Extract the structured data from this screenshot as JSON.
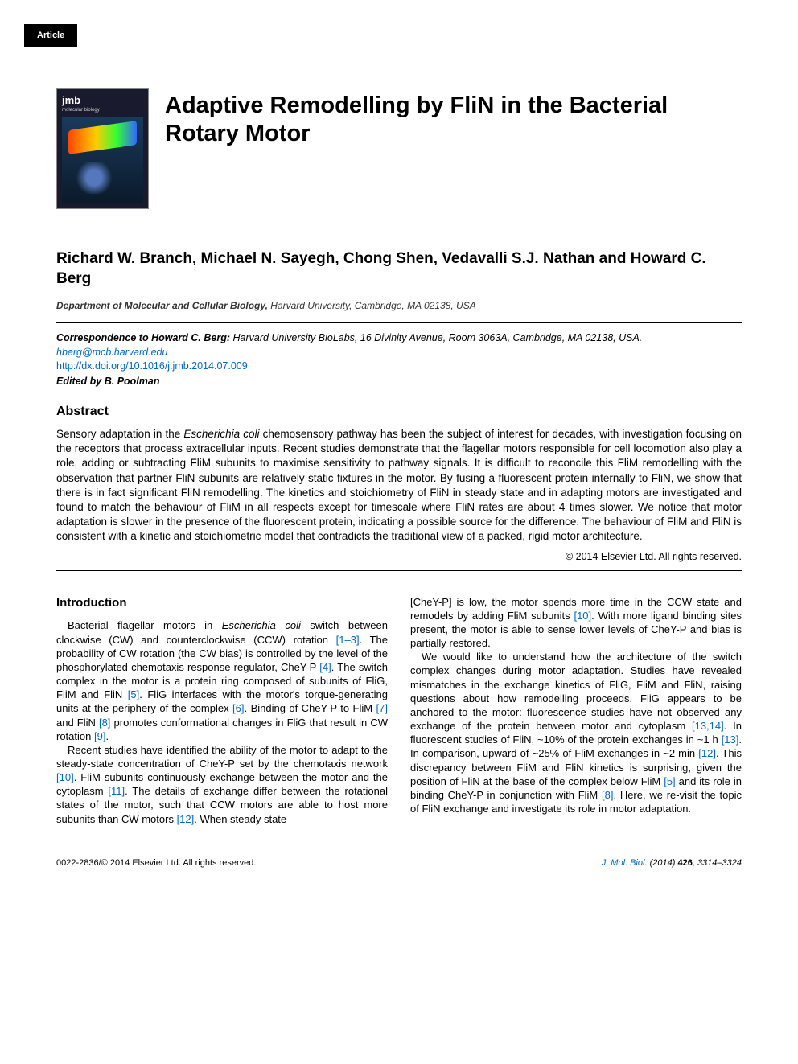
{
  "tab_label": "Article",
  "journal_cover": {
    "brand": "jmb",
    "subtitle": "molecular biology"
  },
  "title": "Adaptive Remodelling by FliN in the Bacterial Rotary Motor",
  "authors": "Richard W. Branch, Michael N. Sayegh, Chong Shen, Vedavalli S.J. Nathan and Howard C. Berg",
  "affiliation": {
    "department": "Department of Molecular and Cellular Biology,",
    "institution": " Harvard University, Cambridge, MA 02138, USA"
  },
  "correspondence": {
    "label": "Correspondence to Howard C. Berg:",
    "text": " Harvard University BioLabs, 16 Divinity Avenue, Room 3063A, Cambridge, MA 02138, USA. ",
    "email": "hberg@mcb.harvard.edu"
  },
  "doi": "http://dx.doi.org/10.1016/j.jmb.2014.07.009",
  "edited_by": "Edited by B. Poolman",
  "abstract": {
    "heading": "Abstract",
    "text_pre": "Sensory adaptation in the ",
    "text_ital": "Escherichia coli",
    "text_post": " chemosensory pathway has been the subject of interest for decades, with investigation focusing on the receptors that process extracellular inputs. Recent studies demonstrate that the flagellar motors responsible for cell locomotion also play a role, adding or subtracting FliM subunits to maximise sensitivity to pathway signals. It is difficult to reconcile this FliM remodelling with the observation that partner FliN subunits are relatively static fixtures in the motor. By fusing a fluorescent protein internally to FliN, we show that there is in fact significant FliN remodelling. The kinetics and stoichiometry of FliN in steady state and in adapting motors are investigated and found to match the behaviour of FliM in all respects except for timescale where FliN rates are about 4 times slower. We notice that motor adaptation is slower in the presence of the fluorescent protein, indicating a possible source for the difference. The behaviour of FliM and FliN is consistent with a kinetic and stoichiometric model that contradicts the traditional view of a packed, rigid motor architecture.",
    "copyright": "© 2014 Elsevier Ltd. All rights reserved."
  },
  "intro": {
    "heading": "Introduction",
    "p1_a": "Bacterial flagellar motors in ",
    "p1_ital": "Escherichia coli",
    "p1_b": " switch between clockwise (CW) and counterclockwise (CCW) rotation ",
    "c1": "[1–3]",
    "p1_c": ". The probability of CW rotation (the CW bias) is controlled by the level of the phosphorylated chemotaxis response regulator, CheY-P ",
    "c2": "[4]",
    "p1_d": ". The switch complex in the motor is a protein ring composed of subunits of FliG, FliM and FliN ",
    "c3": "[5]",
    "p1_e": ". FliG interfaces with the motor's torque-generating units at the periphery of the complex ",
    "c4": "[6]",
    "p1_f": ". Binding of CheY-P to FliM ",
    "c5": "[7]",
    "p1_g": " and FliN ",
    "c6": "[8]",
    "p1_h": " promotes conformational changes in FliG that result in CW rotation ",
    "c7": "[9]",
    "p1_i": ".",
    "p2_a": "Recent studies have identified the ability of the motor to adapt to the steady-state concentration of CheY-P set by the chemotaxis network ",
    "c8": "[10]",
    "p2_b": ". FliM subunits continuously exchange between the motor and the cytoplasm ",
    "c9": "[11]",
    "p2_c": ". The details of exchange differ between the rotational states of the motor, such that CCW motors are able to host more subunits than CW motors ",
    "c10": "[12]",
    "p2_d": ". When steady state",
    "p3_a": "[CheY-P] is low, the motor spends more time in the CCW state and remodels by adding FliM subunits ",
    "c11": "[10]",
    "p3_b": ". With more ligand binding sites present, the motor is able to sense lower levels of CheY-P and bias is partially restored.",
    "p4_a": "We would like to understand how the architecture of the switch complex changes during motor adaptation. Studies have revealed mismatches in the exchange kinetics of FliG, FliM and FliN, raising questions about how remodelling proceeds. FliG appears to be anchored to the motor: fluorescence studies have not observed any exchange of the protein between motor and cytoplasm ",
    "c12": "[13,14]",
    "p4_b": ". In fluorescent studies of FliN, ~10% of the protein exchanges in ~1 h ",
    "c13": "[13]",
    "p4_c": ". In comparison, upward of ~25% of FliM exchanges in ~2 min ",
    "c14": "[12]",
    "p4_d": ". This discrepancy between FliM and FliN kinetics is surprising, given the position of FliN at the base of the complex below FliM ",
    "c15": "[5]",
    "p4_e": " and its role in binding CheY-P in conjunction with FliM ",
    "c16": "[8]",
    "p4_f": ". Here, we re-visit the topic of FliN exchange and investigate its role in motor adaptation."
  },
  "footer": {
    "left": "0022-2836/© 2014 Elsevier Ltd. All rights reserved.",
    "journal": "J. Mol. Biol.",
    "year": " (2014) ",
    "vol": "426",
    "pages": ", 3314–3324"
  },
  "colors": {
    "link": "#0066cc",
    "text": "#000000",
    "tab_bg": "#000000",
    "tab_fg": "#ffffff"
  }
}
